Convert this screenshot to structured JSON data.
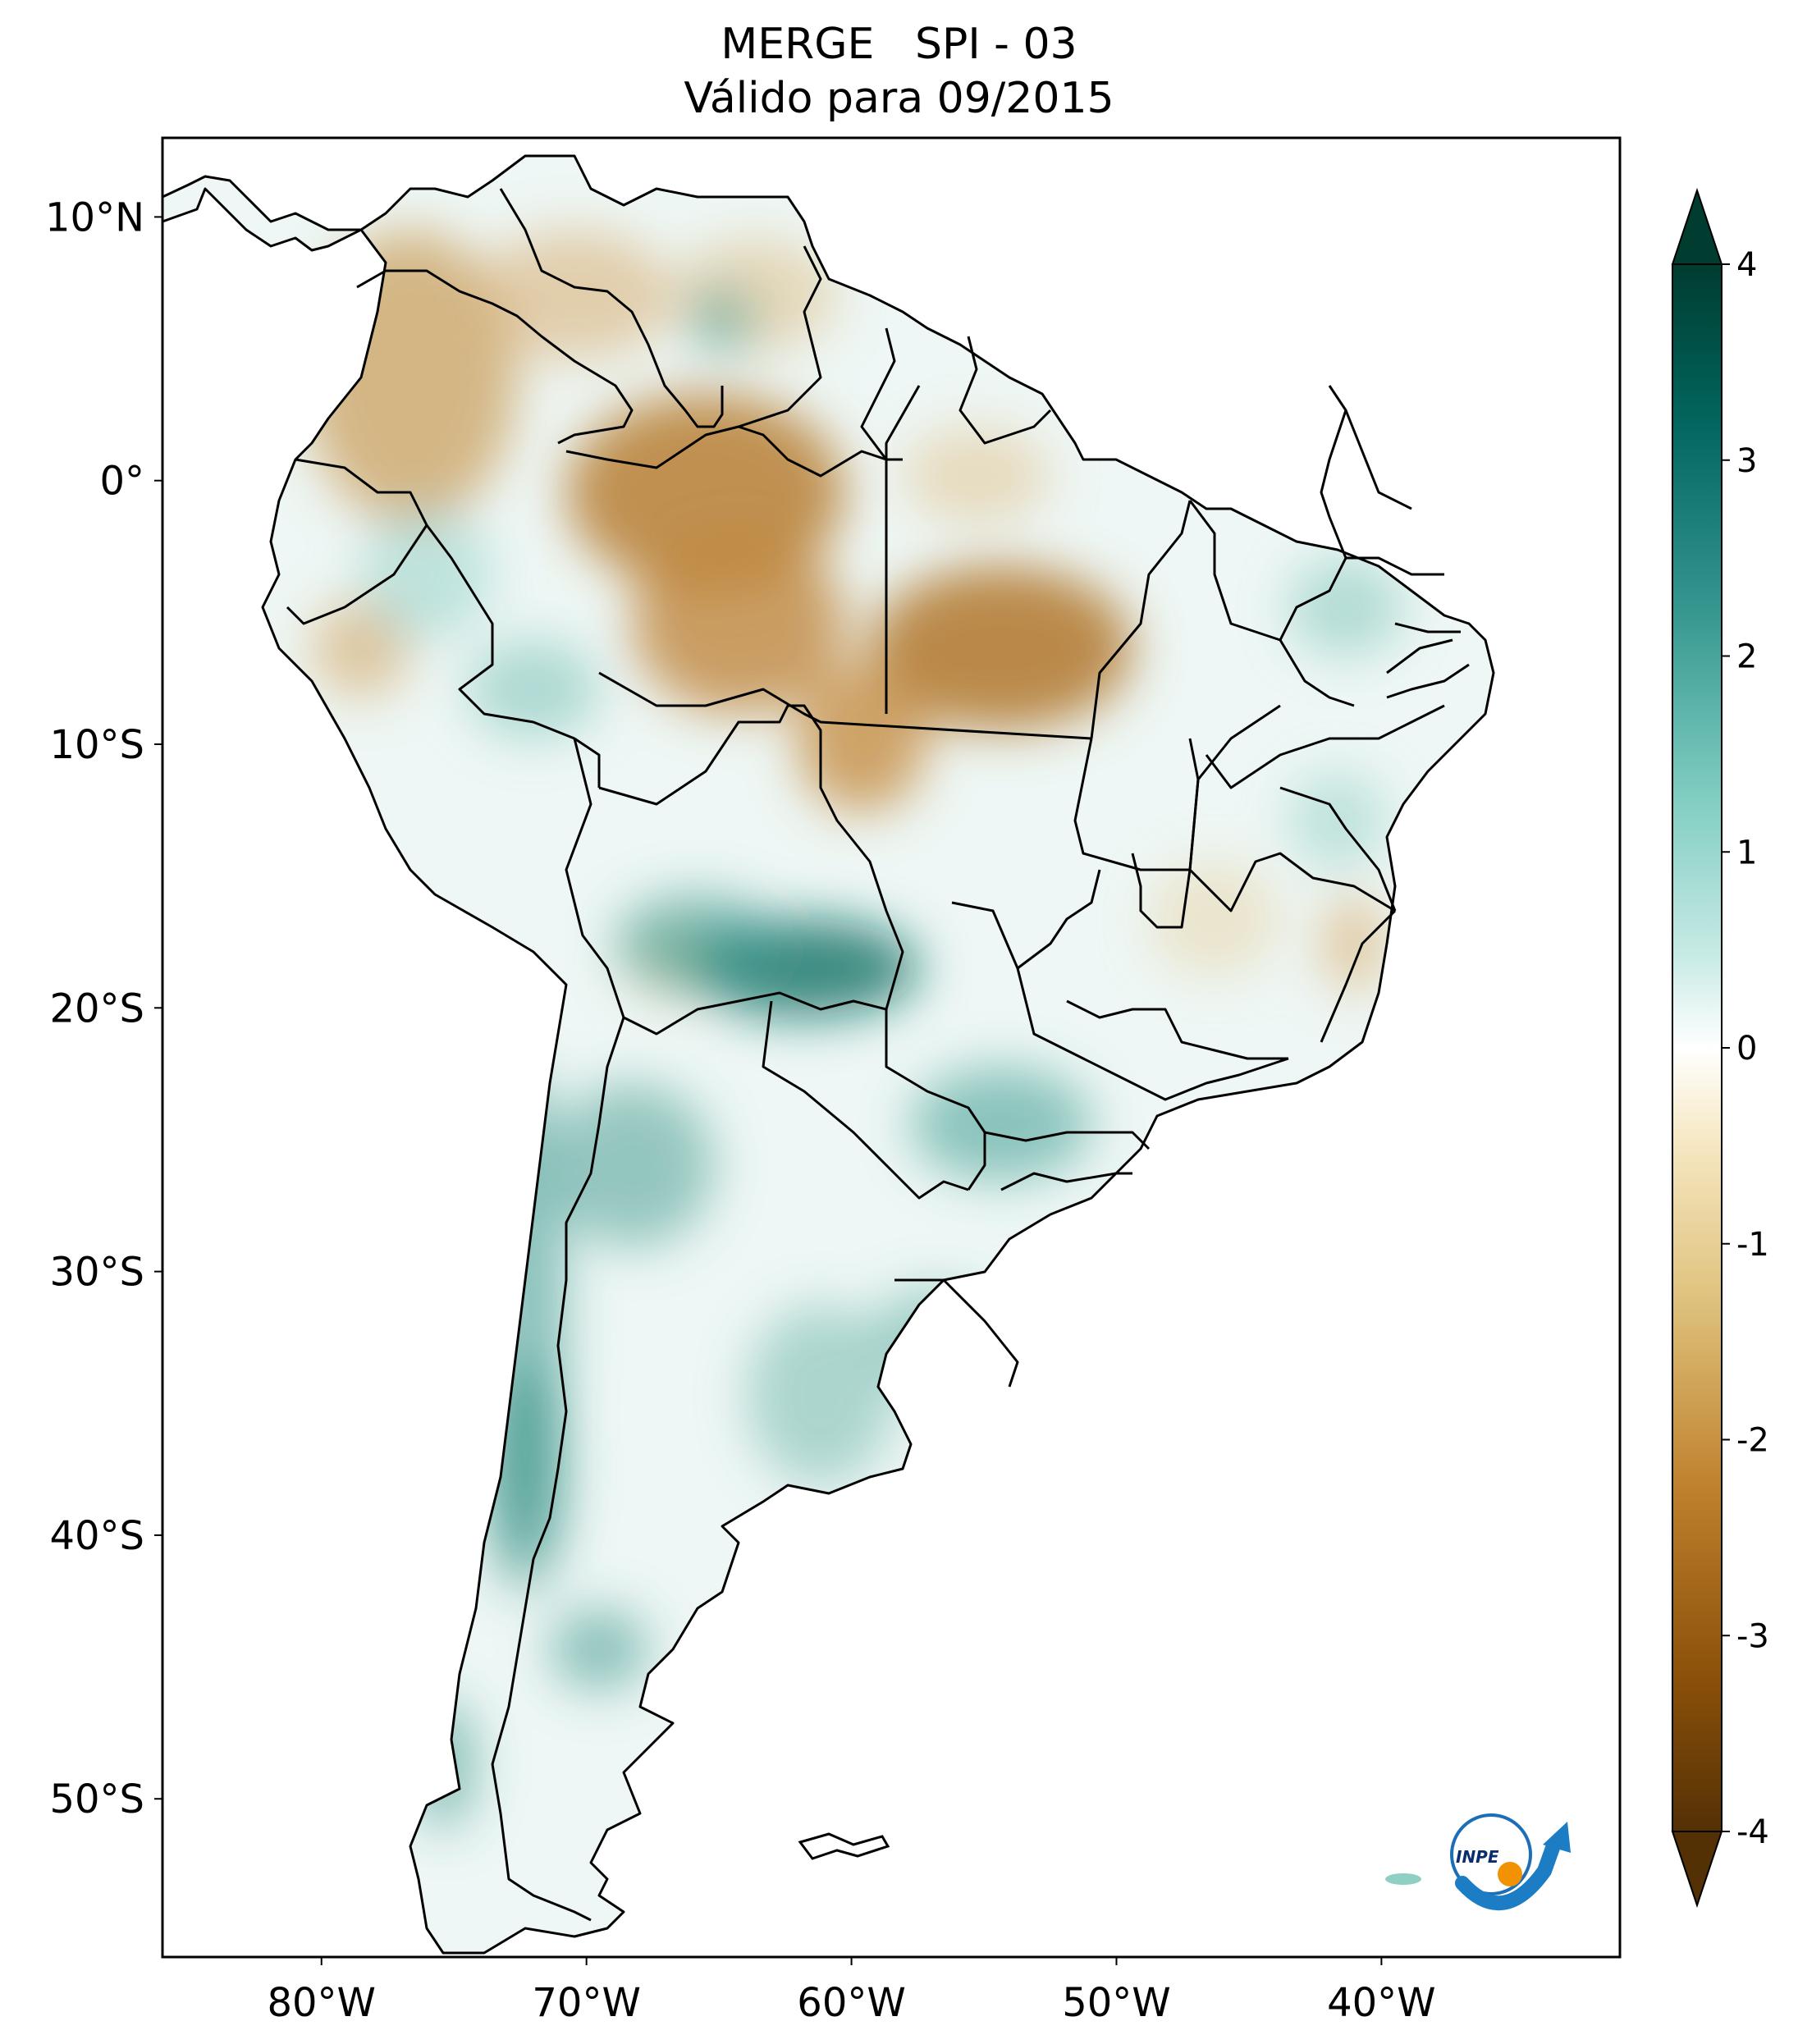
{
  "title": {
    "line1": "MERGE   SPI - 03",
    "line2": "Válido para 09/2015"
  },
  "map": {
    "lon_ticks": [
      "80°W",
      "70°W",
      "60°W",
      "50°W",
      "40°W"
    ],
    "lat_ticks": [
      "10°N",
      "0°",
      "10°S",
      "20°S",
      "30°S",
      "40°S",
      "50°S"
    ],
    "extent": {
      "lon_min": -86,
      "lon_max": -31,
      "lat_min": -56,
      "lat_max": 13
    }
  },
  "colorbar": {
    "ticks": [
      "4",
      "3",
      "2",
      "1",
      "0",
      "-1",
      "-2",
      "-3",
      "-4"
    ],
    "range": [
      -4,
      4
    ],
    "colors": [
      "#543005",
      "#8c510a",
      "#bf812d",
      "#dfc27d",
      "#f6e8c3",
      "#ffffff",
      "#c7eae5",
      "#80cdc1",
      "#35978f",
      "#01665e",
      "#003c30"
    ]
  },
  "logo": {
    "text": "INPE"
  }
}
